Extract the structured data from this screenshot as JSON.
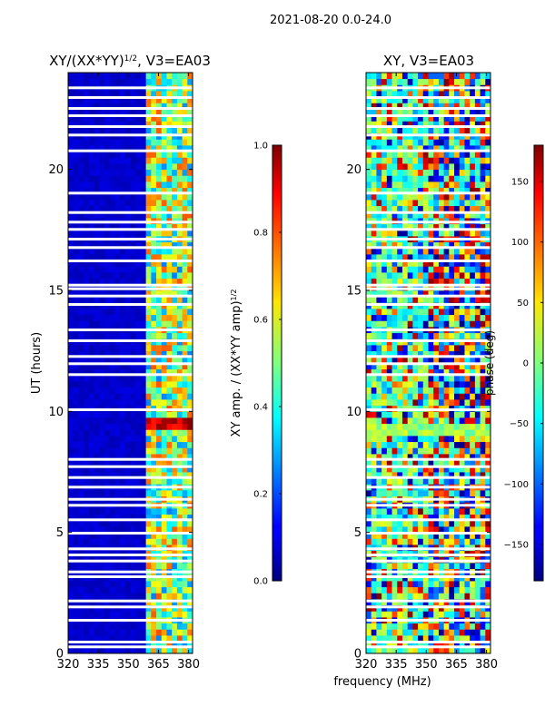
{
  "suptitle": "2021-08-20 0.0-24.0",
  "shared_xlabel": "frequency (MHz)",
  "chart_data": [
    {
      "type": "heatmap",
      "title_main": "XY/(XX*YY)",
      "title_sup": "1/2",
      "title_suffix": ", V3=EA03",
      "xlabel": "",
      "ylabel": "UT (hours)",
      "xlim": [
        320,
        382
      ],
      "ylim": [
        0,
        24
      ],
      "xticks": [
        "320",
        "335",
        "350",
        "365",
        "380"
      ],
      "xtick_values": [
        320,
        335,
        350,
        365,
        380
      ],
      "yticks": [
        "0",
        "5",
        "10",
        "15",
        "20"
      ],
      "ytick_values": [
        0,
        5,
        10,
        15,
        20
      ],
      "colorbar": {
        "label_main": "XY amp. / (XX*YY amp)",
        "label_sup": "1/2",
        "range": [
          0.0,
          1.0
        ],
        "ticks": [
          "0.0",
          "0.2",
          "0.4",
          "0.6",
          "0.8",
          "1.0"
        ],
        "tick_values": [
          0.0,
          0.2,
          0.4,
          0.6,
          0.8,
          1.0
        ]
      }
    },
    {
      "type": "heatmap",
      "title_main": "XY, V3=EA03",
      "xlabel": "frequency (MHz)",
      "ylabel": "",
      "xlim": [
        320,
        382
      ],
      "ylim": [
        0,
        24
      ],
      "xticks": [
        "320",
        "335",
        "350",
        "365",
        "380"
      ],
      "xtick_values": [
        320,
        335,
        350,
        365,
        380
      ],
      "yticks": [
        "0",
        "5",
        "10",
        "15",
        "20"
      ],
      "ytick_values": [
        0,
        5,
        10,
        15,
        20
      ],
      "colorbar": {
        "label_main": "phase (deg)",
        "range": [
          -180,
          180
        ],
        "ticks": [
          "−150",
          "−100",
          "−50",
          "0",
          "50",
          "100",
          "150"
        ],
        "tick_values": [
          -150,
          -100,
          -50,
          0,
          50,
          100,
          150
        ]
      }
    }
  ],
  "data_gaps_hours": [
    0.25,
    0.45,
    1.35,
    1.9,
    2.15,
    3.15,
    3.35,
    3.8,
    4.05,
    4.3,
    4.95,
    5.5,
    6.1,
    6.35,
    6.85,
    7.25,
    7.7,
    8.0,
    10.05,
    11.5,
    11.95,
    12.25,
    12.9,
    13.35,
    14.4,
    14.75,
    15.05,
    15.2,
    16.2,
    16.75,
    17.1,
    17.5,
    17.8,
    18.2,
    19.0,
    20.75,
    21.4,
    21.75,
    22.2,
    22.5,
    22.95,
    23.35
  ]
}
